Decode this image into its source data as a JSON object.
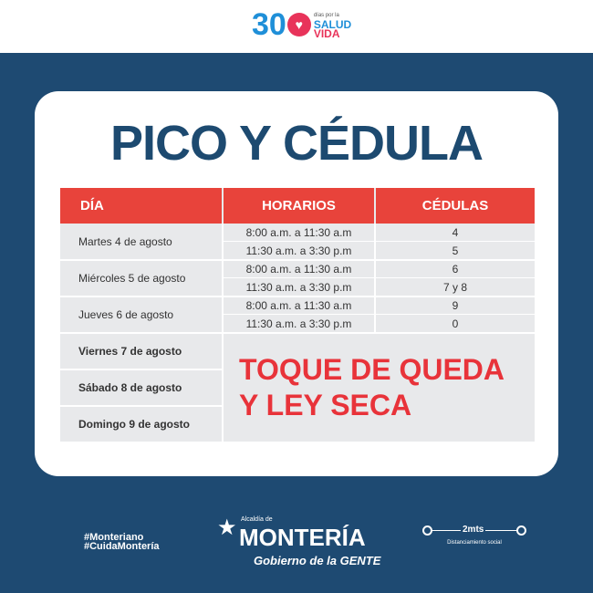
{
  "top_logo": {
    "number": "30",
    "small": "días por la",
    "word1": "SALUD",
    "word2": "VIDA",
    "conj": "la"
  },
  "title": "PICO Y CÉDULA",
  "table": {
    "headers": [
      "DÍA",
      "HORARIOS",
      "CÉDULAS"
    ],
    "days": [
      {
        "day": "Martes 4 de agosto",
        "slots": [
          {
            "time": "8:00 a.m. a 11:30 a.m",
            "ced": "4"
          },
          {
            "time": "11:30 a.m. a 3:30 p.m",
            "ced": "5"
          }
        ]
      },
      {
        "day": "Miércoles 5 de agosto",
        "slots": [
          {
            "time": "8:00 a.m. a 11:30 a.m",
            "ced": "6"
          },
          {
            "time": "11:30 a.m. a 3:30 p.m",
            "ced": "7 y 8"
          }
        ]
      },
      {
        "day": "Jueves 6 de agosto",
        "slots": [
          {
            "time": "8:00 a.m. a 11:30 a.m",
            "ced": "9"
          },
          {
            "time": "11:30 a.m. a 3:30 p.m",
            "ced": "0"
          }
        ]
      }
    ],
    "restricted_days": [
      "Viernes 7 de agosto",
      "Sábado 8 de agosto",
      "Domingo 9 de agosto"
    ],
    "notice_line1": "TOQUE DE QUEDA",
    "notice_line2": "Y LEY SECA"
  },
  "footer": {
    "hashtag1": "#Monteriano",
    "hashtag2": "#CuidaMontería",
    "alcaldia": "Alcaldía de",
    "city": "MONTERÍA",
    "slogan": "Gobierno de la GENTE",
    "distance": "2mts",
    "distance_label": "Distanciamiento social"
  },
  "colors": {
    "navy": "#1e4a72",
    "red": "#e8433b",
    "title": "#1d4a70"
  }
}
